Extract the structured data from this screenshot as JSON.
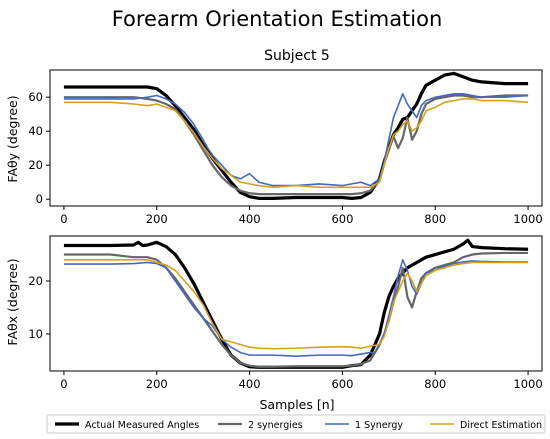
{
  "figure": {
    "title": "Forearm Orientation Estimation",
    "xlabel": "Samples [n]"
  },
  "legend": {
    "placement": "bottom",
    "entries": [
      {
        "label": "Actual Measured Angles",
        "color": "#000000"
      },
      {
        "label": "2 synergies",
        "color": "#666666"
      },
      {
        "label": "1 Synergy",
        "color": "#4468c4"
      },
      {
        "label": "Direct Estimation",
        "color": "#d4a21e"
      }
    ]
  },
  "chart_data": [
    {
      "type": "line",
      "title": "Subject 5",
      "xlabel": "",
      "ylabel": "FAθy (degree)",
      "xlim": [
        -30,
        1030
      ],
      "ylim": [
        -4,
        76
      ],
      "xticks": [
        0,
        200,
        400,
        600,
        800,
        1000
      ],
      "yticks": [
        0,
        20,
        40,
        60
      ],
      "series": [
        {
          "name": "Actual Measured Angles",
          "color": "#000000",
          "width": 3.2,
          "x": [
            0,
            50,
            100,
            150,
            180,
            200,
            220,
            240,
            260,
            280,
            300,
            320,
            340,
            360,
            380,
            400,
            420,
            450,
            500,
            550,
            600,
            620,
            640,
            660,
            680,
            690,
            700,
            710,
            720,
            730,
            740,
            750,
            760,
            770,
            780,
            800,
            820,
            840,
            860,
            880,
            900,
            950,
            1000
          ],
          "y": [
            66,
            66,
            66,
            66,
            66,
            65,
            61,
            55,
            48,
            41,
            32,
            24,
            17,
            10,
            4,
            1.5,
            0.5,
            0.5,
            1,
            1,
            1,
            0.5,
            1,
            4,
            12,
            22,
            30,
            38,
            42,
            47,
            48,
            52,
            56,
            62,
            67,
            70,
            73,
            74,
            72,
            70,
            69,
            68,
            68
          ]
        },
        {
          "name": "2 synergies",
          "color": "#666666",
          "width": 2.2,
          "x": [
            0,
            50,
            100,
            150,
            180,
            200,
            220,
            240,
            260,
            280,
            300,
            320,
            340,
            360,
            380,
            400,
            420,
            450,
            500,
            550,
            600,
            620,
            640,
            660,
            680,
            690,
            700,
            710,
            720,
            730,
            740,
            750,
            760,
            770,
            780,
            800,
            820,
            840,
            860,
            880,
            900,
            950,
            1000
          ],
          "y": [
            60,
            60,
            60,
            60,
            59,
            58,
            56,
            53,
            46,
            38,
            29,
            20,
            13,
            8,
            5,
            3.5,
            3,
            3,
            3,
            3,
            3,
            3,
            3.5,
            5,
            11,
            21,
            29,
            37,
            30,
            36,
            48,
            35,
            40,
            50,
            56,
            59,
            60,
            61,
            61,
            60,
            60,
            61,
            61
          ]
        },
        {
          "name": "1 Synergy",
          "color": "#4468c4",
          "width": 1.6,
          "x": [
            0,
            50,
            100,
            150,
            180,
            200,
            220,
            240,
            260,
            280,
            300,
            310,
            320,
            340,
            360,
            380,
            400,
            420,
            450,
            500,
            550,
            600,
            620,
            640,
            660,
            680,
            690,
            700,
            710,
            720,
            730,
            740,
            750,
            760,
            770,
            780,
            800,
            820,
            840,
            860,
            880,
            900,
            950,
            1000
          ],
          "y": [
            59,
            59,
            59,
            59,
            60,
            61,
            59,
            56,
            51,
            44,
            35,
            30,
            26,
            20,
            14,
            12,
            15,
            10,
            8,
            8,
            9,
            8,
            9,
            10,
            8,
            12,
            22,
            35,
            48,
            55,
            62,
            56,
            52,
            48,
            55,
            58,
            60,
            61,
            62,
            62,
            61,
            60,
            60,
            61
          ]
        },
        {
          "name": "Direct Estimation",
          "color": "#d4a21e",
          "width": 1.6,
          "x": [
            0,
            50,
            100,
            150,
            180,
            200,
            220,
            240,
            260,
            280,
            300,
            320,
            340,
            360,
            380,
            400,
            420,
            450,
            500,
            550,
            600,
            620,
            640,
            660,
            680,
            690,
            700,
            710,
            720,
            730,
            740,
            750,
            760,
            770,
            780,
            800,
            820,
            840,
            860,
            880,
            900,
            950,
            1000
          ],
          "y": [
            57,
            57,
            57,
            56,
            55,
            56,
            54,
            52,
            46,
            39,
            31,
            24,
            18,
            14,
            10,
            9,
            8,
            7,
            8,
            7,
            7,
            7,
            7,
            7,
            10,
            20,
            30,
            38,
            40,
            44,
            46,
            40,
            42,
            46,
            52,
            54,
            57,
            58,
            59,
            59,
            58,
            58,
            57
          ]
        }
      ]
    },
    {
      "type": "line",
      "title": "",
      "xlabel": "Samples [n]",
      "ylabel": "FAθx (degree)",
      "xlim": [
        -30,
        1030
      ],
      "ylim": [
        3,
        28.5
      ],
      "xticks": [
        0,
        200,
        400,
        600,
        800,
        1000
      ],
      "yticks": [
        10,
        20
      ],
      "series": [
        {
          "name": "Actual Measured Angles",
          "color": "#000000",
          "width": 3.2,
          "x": [
            0,
            50,
            100,
            150,
            160,
            170,
            180,
            200,
            220,
            240,
            260,
            280,
            300,
            320,
            340,
            360,
            380,
            400,
            420,
            450,
            500,
            550,
            600,
            620,
            640,
            660,
            680,
            690,
            700,
            710,
            720,
            730,
            740,
            750,
            760,
            780,
            800,
            820,
            840,
            860,
            870,
            880,
            900,
            950,
            1000
          ],
          "y": [
            26.7,
            26.7,
            26.7,
            26.8,
            27.3,
            26.7,
            26.8,
            27.3,
            26.5,
            25,
            22.5,
            19.5,
            16,
            12.5,
            9,
            6,
            4.5,
            3.8,
            3.7,
            3.7,
            3.7,
            3.7,
            3.7,
            4,
            4.2,
            6,
            10,
            14,
            17,
            19,
            20.5,
            21.5,
            22.5,
            23,
            23.5,
            24.5,
            25,
            25.5,
            26,
            27,
            27.7,
            26.5,
            26.3,
            26.1,
            26
          ]
        },
        {
          "name": "2 synergies",
          "color": "#666666",
          "width": 2.2,
          "x": [
            0,
            50,
            100,
            150,
            180,
            200,
            220,
            240,
            260,
            280,
            300,
            320,
            340,
            360,
            380,
            400,
            420,
            450,
            500,
            550,
            600,
            620,
            640,
            660,
            680,
            690,
            700,
            710,
            720,
            730,
            740,
            750,
            760,
            770,
            780,
            800,
            820,
            840,
            860,
            880,
            900,
            950,
            1000
          ],
          "y": [
            25,
            25,
            25,
            24.5,
            24.5,
            24,
            22.5,
            20.5,
            18,
            15.5,
            13,
            10.5,
            8,
            6,
            4.5,
            4,
            3.8,
            3.8,
            3.9,
            3.9,
            3.9,
            4,
            4.3,
            5,
            8,
            10,
            12.5,
            16,
            19,
            22.5,
            17,
            15,
            18,
            20.5,
            21.5,
            22.5,
            23,
            23.5,
            24.5,
            25,
            25.2,
            25.3,
            25.3
          ]
        },
        {
          "name": "1 Synergy",
          "color": "#4468c4",
          "width": 1.6,
          "x": [
            0,
            50,
            100,
            150,
            180,
            200,
            220,
            240,
            260,
            280,
            300,
            320,
            340,
            360,
            380,
            400,
            420,
            450,
            500,
            550,
            600,
            620,
            640,
            660,
            670,
            680,
            690,
            700,
            710,
            720,
            730,
            740,
            750,
            760,
            770,
            780,
            800,
            820,
            840,
            860,
            880,
            900,
            950,
            1000
          ],
          "y": [
            23.2,
            23.2,
            23.2,
            23.3,
            23.5,
            23.3,
            22.5,
            20,
            17.5,
            15,
            13,
            11.5,
            9,
            7.5,
            6.5,
            6,
            6,
            6,
            5.8,
            6,
            6,
            5.9,
            6.2,
            6.5,
            6.4,
            7.8,
            10,
            13.5,
            17,
            21,
            24,
            22,
            19,
            17.5,
            19.5,
            21.5,
            22,
            22.8,
            23.3,
            23.6,
            23.8,
            23.7,
            23.6,
            23.6
          ]
        },
        {
          "name": "Direct Estimation",
          "color": "#d4a21e",
          "width": 1.6,
          "x": [
            0,
            50,
            100,
            150,
            180,
            200,
            220,
            240,
            260,
            280,
            300,
            320,
            340,
            360,
            380,
            400,
            420,
            450,
            500,
            550,
            600,
            620,
            640,
            660,
            680,
            690,
            700,
            710,
            720,
            730,
            740,
            750,
            760,
            770,
            780,
            800,
            820,
            840,
            860,
            880,
            900,
            950,
            1000
          ],
          "y": [
            24,
            24,
            24,
            24,
            24,
            23.5,
            23,
            22,
            20,
            18,
            15.5,
            12,
            9,
            8.5,
            8,
            7.5,
            7.3,
            7.2,
            7.3,
            7.5,
            7.6,
            7.5,
            7.3,
            7.7,
            8,
            9.5,
            12.5,
            16,
            18,
            20,
            21.5,
            20,
            18,
            19.5,
            21,
            22,
            22.5,
            23,
            23.3,
            23.5,
            23.5,
            23.5,
            23.5
          ]
        }
      ]
    }
  ]
}
